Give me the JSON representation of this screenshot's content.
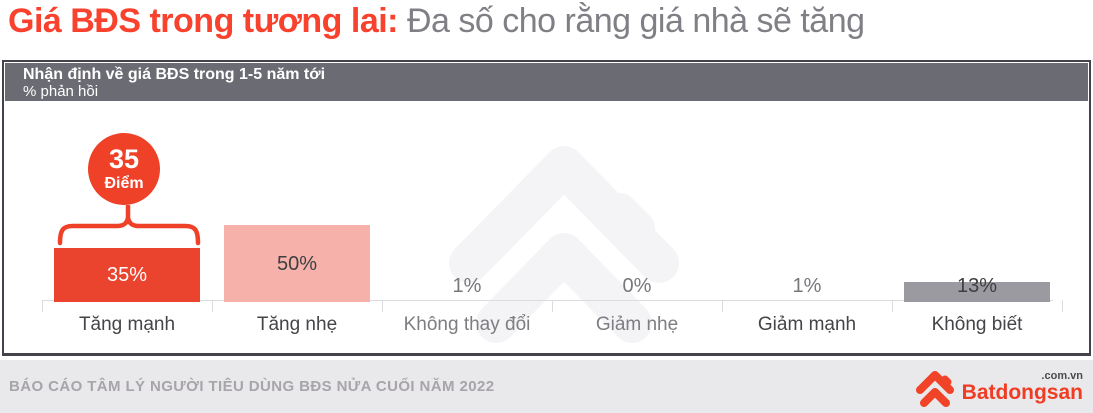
{
  "title": {
    "highlight": "Giá BĐS trong tương lai:",
    "rest": "Đa số cho rằng giá nhà sẽ tăng"
  },
  "panel": {
    "header_line1": "Nhận định về giá BĐS trong 1-5 năm tới",
    "header_line2": "% phản hồi"
  },
  "badge": {
    "value": "35",
    "unit": "Điểm"
  },
  "chart_data": {
    "type": "bar",
    "title": "Nhận định về giá BĐS trong 1-5 năm tới",
    "ylabel": "% phản hồi",
    "categories": [
      "Tăng mạnh",
      "Tăng nhẹ",
      "Không thay đổi",
      "Giảm nhẹ",
      "Giảm mạnh",
      "Không biết"
    ],
    "values": [
      35,
      50,
      1,
      0,
      1,
      13
    ],
    "labels": [
      "35%",
      "50%",
      "1%",
      "0%",
      "1%",
      "13%"
    ],
    "bar_colors": [
      "#ea442e",
      "#f6b2aa",
      null,
      null,
      null,
      "#9b9aa1"
    ],
    "annotation": "35 Điểm",
    "ylim": [
      0,
      55
    ],
    "grid": false,
    "legend": null
  },
  "footer": {
    "report": "BÁO CÁO TÂM LÝ NGƯỜI TIÊU DÙNG BĐS NỬA CUỐI NĂM 2022",
    "brand": "Batdongsan",
    "brand_suffix": ".com.vn"
  },
  "colors": {
    "accent_red": "#ee4128",
    "bar_red": "#ea442e",
    "bar_pink": "#f6b2aa",
    "bar_gray": "#9b9aa1",
    "header_bg": "#6b6c73",
    "footer_bg": "#e9e8ea"
  }
}
